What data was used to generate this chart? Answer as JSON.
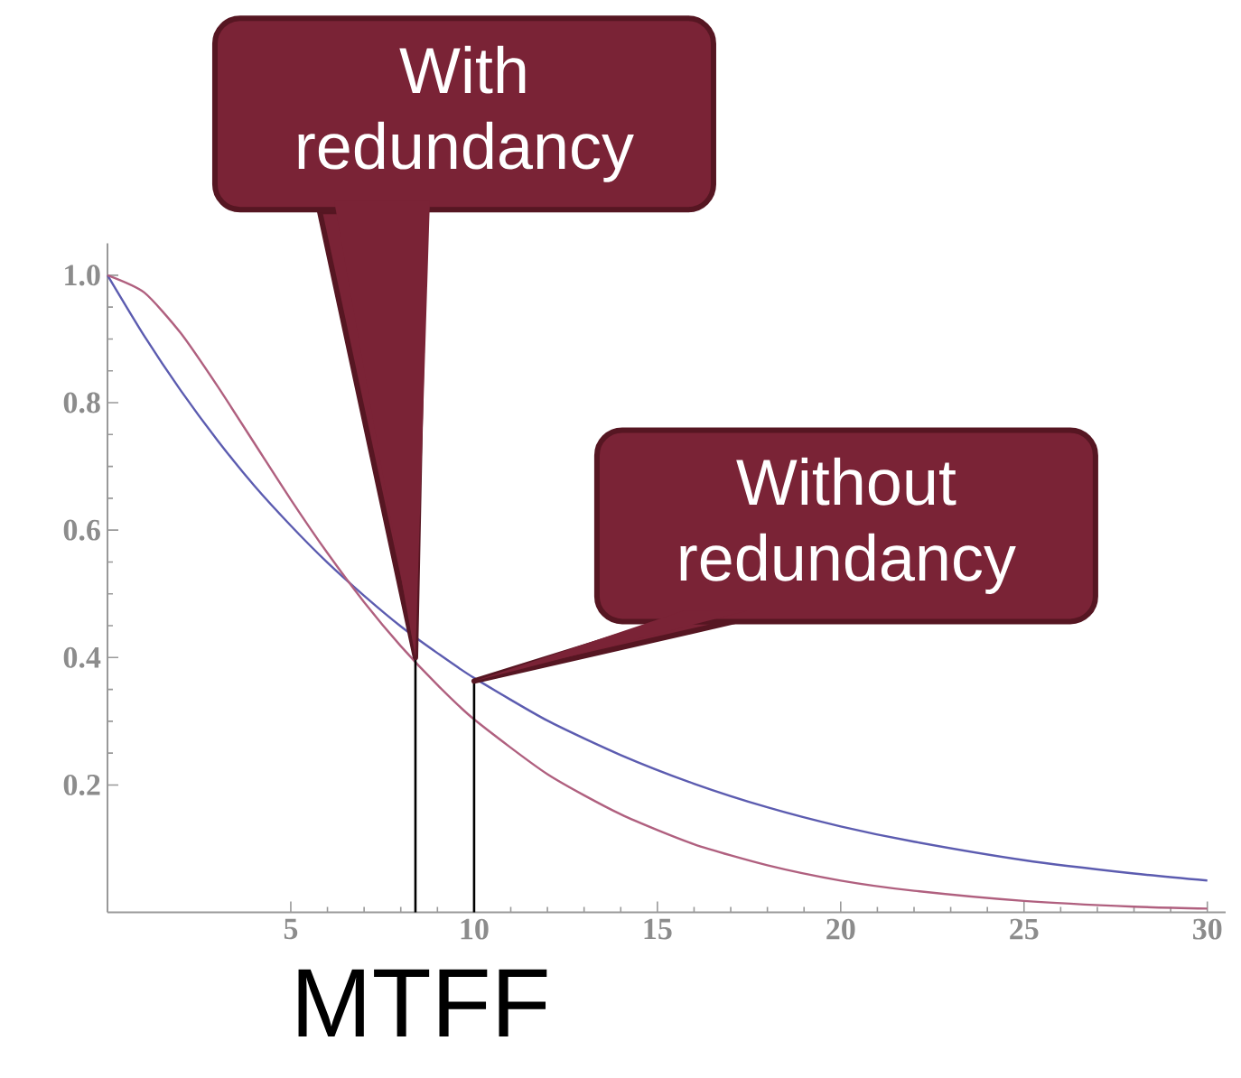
{
  "chart_data": {
    "type": "line",
    "xlabel": "MTFF",
    "x": [
      0,
      1,
      2,
      3,
      4,
      5,
      6,
      7,
      8,
      9,
      10,
      12,
      14,
      16,
      18,
      20,
      22,
      25,
      28,
      30
    ],
    "series": [
      {
        "color": "#5c5cb0",
        "values": [
          1.0,
          0.905,
          0.819,
          0.741,
          0.67,
          0.607,
          0.549,
          0.497,
          0.449,
          0.407,
          0.368,
          0.301,
          0.247,
          0.202,
          0.165,
          0.135,
          0.111,
          0.082,
          0.061,
          0.05
        ]
      },
      {
        "color": "#b0607f",
        "values": [
          1.0,
          0.973,
          0.909,
          0.826,
          0.737,
          0.648,
          0.564,
          0.487,
          0.418,
          0.357,
          0.303,
          0.217,
          0.154,
          0.107,
          0.074,
          0.05,
          0.034,
          0.018,
          0.009,
          0.006
        ]
      }
    ],
    "xlim": [
      0,
      30.5
    ],
    "ylim": [
      0,
      1.05
    ],
    "xticks": [
      5,
      10,
      15,
      20,
      25,
      30
    ],
    "yticks": [
      0.2,
      0.4,
      0.6,
      0.8,
      {
        "value": 1.0,
        "label": "1.0"
      }
    ],
    "ref_lines": [
      {
        "axis": "x",
        "value": 8.4
      },
      {
        "axis": "x",
        "value": 10.0
      }
    ],
    "annotations": [
      {
        "text": "With redundancy",
        "x": 8.4,
        "y": 0.4
      },
      {
        "text": "Without redundancy",
        "x": 10.0,
        "y": 0.363
      }
    ]
  }
}
